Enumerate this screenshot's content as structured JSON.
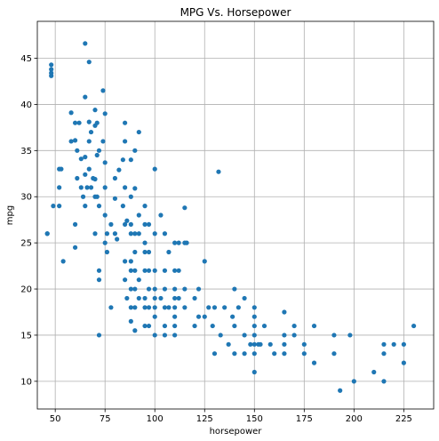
{
  "chart_data": {
    "type": "scatter",
    "title": "MPG Vs. Horsepower",
    "xlabel": "horsepower",
    "ylabel": "mpg",
    "xlim": [
      41,
      240
    ],
    "ylim": [
      7,
      49
    ],
    "xticks": [
      50,
      75,
      100,
      125,
      150,
      175,
      200,
      225
    ],
    "yticks": [
      10,
      15,
      20,
      25,
      30,
      35,
      40,
      45
    ],
    "grid": true,
    "marker_color": "#1f77b4",
    "series": [
      {
        "points": [
          [
            46,
            26
          ],
          [
            46,
            26
          ],
          [
            48,
            43.1
          ],
          [
            48,
            43.4
          ],
          [
            48,
            44.3
          ],
          [
            48,
            43.8
          ],
          [
            49,
            29
          ],
          [
            52,
            29
          ],
          [
            52,
            33
          ],
          [
            52,
            31
          ],
          [
            53,
            33
          ],
          [
            54,
            23
          ],
          [
            58,
            36
          ],
          [
            58,
            39.1
          ],
          [
            60,
            36.1
          ],
          [
            60,
            38
          ],
          [
            60,
            27
          ],
          [
            60,
            24.5
          ],
          [
            61,
            35
          ],
          [
            61,
            32
          ],
          [
            62,
            38
          ],
          [
            63,
            31
          ],
          [
            63,
            34.1
          ],
          [
            64,
            30
          ],
          [
            65,
            40.8
          ],
          [
            65,
            46.6
          ],
          [
            65,
            34.3
          ],
          [
            65,
            32.4
          ],
          [
            65,
            29
          ],
          [
            66,
            31
          ],
          [
            67,
            44.6
          ],
          [
            67,
            38.1
          ],
          [
            67,
            36
          ],
          [
            67,
            33
          ],
          [
            68,
            37
          ],
          [
            68,
            31
          ],
          [
            69,
            32
          ],
          [
            70,
            39.4
          ],
          [
            70,
            37.7
          ],
          [
            70,
            31.9
          ],
          [
            70,
            30
          ],
          [
            70,
            26
          ],
          [
            71,
            38
          ],
          [
            71,
            34.5
          ],
          [
            71,
            30
          ],
          [
            72,
            35
          ],
          [
            72,
            29
          ],
          [
            72,
            22
          ],
          [
            72,
            21
          ],
          [
            72,
            15
          ],
          [
            74,
            36
          ],
          [
            74,
            41.5
          ],
          [
            75,
            39
          ],
          [
            75,
            33.7
          ],
          [
            75,
            31
          ],
          [
            75,
            28
          ],
          [
            75,
            25
          ],
          [
            76,
            26
          ],
          [
            76,
            24
          ],
          [
            78,
            27
          ],
          [
            78,
            18
          ],
          [
            80,
            32
          ],
          [
            80,
            29.8
          ],
          [
            80,
            26
          ],
          [
            81,
            25.4
          ],
          [
            82,
            32.9
          ],
          [
            84,
            34
          ],
          [
            84,
            29
          ],
          [
            85,
            38
          ],
          [
            85,
            36
          ],
          [
            85,
            31
          ],
          [
            85,
            27
          ],
          [
            85,
            23
          ],
          [
            85,
            21
          ],
          [
            86,
            27.4
          ],
          [
            86,
            19
          ],
          [
            88,
            34
          ],
          [
            88,
            30
          ],
          [
            88,
            27
          ],
          [
            88,
            26
          ],
          [
            88,
            23
          ],
          [
            88,
            22
          ],
          [
            88,
            20
          ],
          [
            88,
            18
          ],
          [
            88,
            16.5
          ],
          [
            90,
            35
          ],
          [
            90,
            30.9
          ],
          [
            90,
            26
          ],
          [
            90,
            24
          ],
          [
            90,
            22
          ],
          [
            90,
            20
          ],
          [
            90,
            18
          ],
          [
            90,
            15.5
          ],
          [
            92,
            37
          ],
          [
            92,
            28
          ],
          [
            92,
            26
          ],
          [
            92,
            21
          ],
          [
            92,
            19
          ],
          [
            95,
            29
          ],
          [
            95,
            27
          ],
          [
            95,
            25
          ],
          [
            95,
            24
          ],
          [
            95,
            22
          ],
          [
            95,
            19
          ],
          [
            95,
            18
          ],
          [
            95,
            16
          ],
          [
            97,
            27
          ],
          [
            97,
            24
          ],
          [
            97,
            22
          ],
          [
            97,
            20
          ],
          [
            97,
            18
          ],
          [
            97,
            16
          ],
          [
            100,
            33
          ],
          [
            100,
            26
          ],
          [
            100,
            22
          ],
          [
            100,
            20
          ],
          [
            100,
            19
          ],
          [
            100,
            18
          ],
          [
            100,
            17
          ],
          [
            100,
            15
          ],
          [
            103,
            28
          ],
          [
            103,
            19
          ],
          [
            105,
            26
          ],
          [
            105,
            22
          ],
          [
            105,
            20
          ],
          [
            105,
            18
          ],
          [
            105,
            16
          ],
          [
            105,
            15
          ],
          [
            107,
            24
          ],
          [
            107,
            18
          ],
          [
            110,
            25
          ],
          [
            110,
            22
          ],
          [
            110,
            20
          ],
          [
            110,
            19
          ],
          [
            110,
            18
          ],
          [
            110,
            17
          ],
          [
            110,
            16
          ],
          [
            110,
            15
          ],
          [
            112,
            25
          ],
          [
            112,
            22
          ],
          [
            112,
            19
          ],
          [
            115,
            28.8
          ],
          [
            115,
            25
          ],
          [
            115,
            20
          ],
          [
            115,
            18
          ],
          [
            116,
            25
          ],
          [
            120,
            19
          ],
          [
            120,
            16
          ],
          [
            122,
            20
          ],
          [
            122,
            17
          ],
          [
            125,
            23
          ],
          [
            125,
            17
          ],
          [
            127,
            18
          ],
          [
            129,
            16
          ],
          [
            130,
            13
          ],
          [
            130,
            18
          ],
          [
            132,
            32.7
          ],
          [
            133,
            15
          ],
          [
            135,
            18
          ],
          [
            137,
            14
          ],
          [
            139,
            17
          ],
          [
            140,
            20
          ],
          [
            140,
            16
          ],
          [
            140,
            13
          ],
          [
            142,
            18
          ],
          [
            145,
            19
          ],
          [
            145,
            15
          ],
          [
            145,
            13
          ],
          [
            148,
            14
          ],
          [
            150,
            18
          ],
          [
            150,
            17
          ],
          [
            150,
            16
          ],
          [
            150,
            15
          ],
          [
            150,
            14
          ],
          [
            150,
            13
          ],
          [
            150,
            11
          ],
          [
            152,
            14
          ],
          [
            153,
            14
          ],
          [
            155,
            16
          ],
          [
            158,
            14
          ],
          [
            160,
            13
          ],
          [
            165,
            17.5
          ],
          [
            165,
            15
          ],
          [
            165,
            14
          ],
          [
            165,
            13
          ],
          [
            170,
            16
          ],
          [
            170,
            15
          ],
          [
            175,
            14
          ],
          [
            175,
            13
          ],
          [
            180,
            16
          ],
          [
            180,
            12
          ],
          [
            190,
            15
          ],
          [
            190,
            13
          ],
          [
            193,
            9
          ],
          [
            198,
            15
          ],
          [
            200,
            10
          ],
          [
            210,
            11
          ],
          [
            215,
            14
          ],
          [
            215,
            13
          ],
          [
            215,
            10
          ],
          [
            220,
            14
          ],
          [
            225,
            14
          ],
          [
            225,
            12
          ],
          [
            230,
            16
          ]
        ]
      }
    ]
  }
}
